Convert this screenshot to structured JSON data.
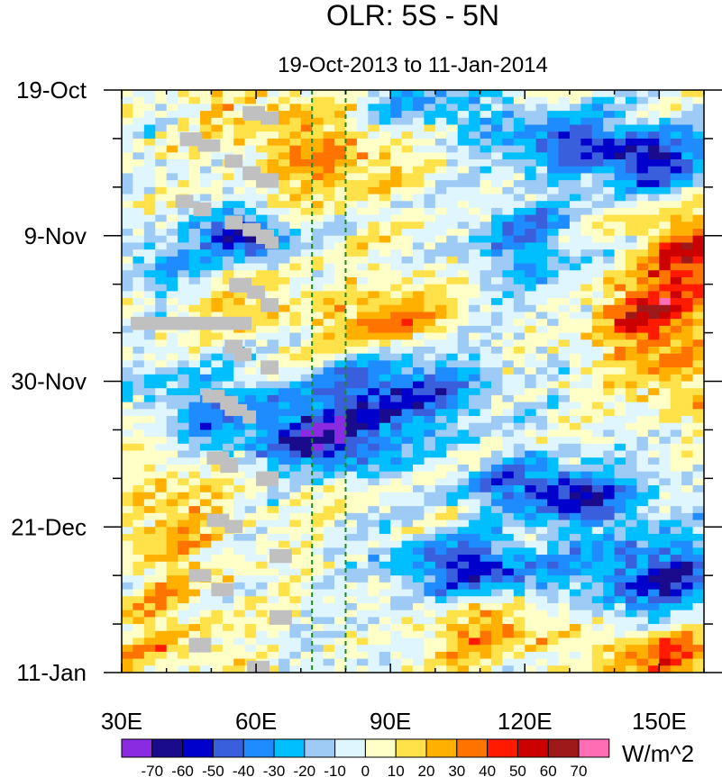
{
  "chart_data": {
    "type": "heatmap",
    "title": "OLR: 5S - 5N",
    "subtitle": "19-Oct-2013 to 11-Jan-2014",
    "x_axis": {
      "range": [
        30,
        160
      ],
      "ticks": [
        30,
        60,
        90,
        120,
        150
      ],
      "tick_labels": [
        "30E",
        "60E",
        "90E",
        "120E",
        "150E"
      ]
    },
    "y_axis": {
      "range_days": [
        0,
        84
      ],
      "ticks_days": [
        0,
        21,
        42,
        63,
        84
      ],
      "tick_labels": [
        "19-Oct",
        "9-Nov",
        "30-Nov",
        "21-Dec",
        "11-Jan"
      ],
      "orientation": "time increases downward"
    },
    "reference_lines_lon": [
      72.5,
      80
    ],
    "missing_data_color": "#c0c0c0",
    "colorbar": {
      "unit_label": "W/m^2",
      "levels": [
        -70,
        -60,
        -50,
        -40,
        -30,
        -20,
        -10,
        0,
        10,
        20,
        30,
        40,
        50,
        60,
        70
      ],
      "level_labels": [
        "-70",
        "-60",
        "-50",
        "-40",
        "-30",
        "-20",
        "-10",
        "0",
        "10",
        "20",
        "30",
        "40",
        "50",
        "60",
        "70"
      ],
      "colors": [
        "#8a2be2",
        "#1a0a8c",
        "#0000cd",
        "#3a5fdc",
        "#1e8cff",
        "#00bfff",
        "#9ecbf5",
        "#e0f6ff",
        "#ffffc8",
        "#ffe14a",
        "#ffb000",
        "#ff7300",
        "#ff1a00",
        "#cd0000",
        "#9e1a1a",
        "#ff6eb4"
      ]
    }
  }
}
